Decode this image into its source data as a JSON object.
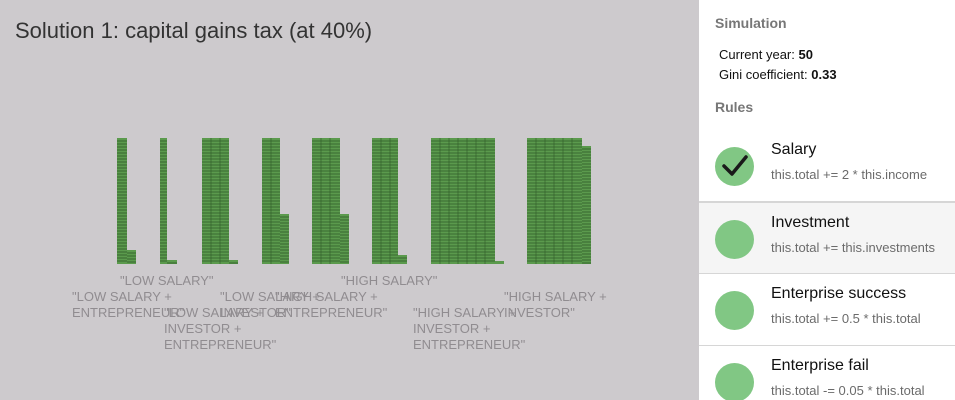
{
  "title": "Solution 1: capital gains tax (at 40%)",
  "colors": {
    "bar": "#5b9a4d",
    "brick_line": "#2f5a28",
    "panel_bg": "#cdcacd",
    "rule_circle": "#81c784"
  },
  "chart_data": {
    "type": "bar",
    "title": "Solution 1: capital gains tax (at 40%)",
    "bars": [
      {
        "group": 0,
        "value": 11
      },
      {
        "group": 0,
        "value": 1
      },
      {
        "group": 1,
        "value": 10
      },
      {
        "group": 1,
        "value": 1
      },
      {
        "group": 2,
        "value": 10
      },
      {
        "group": 2,
        "value": 4
      },
      {
        "group": 3,
        "value": 10
      },
      {
        "group": 3,
        "value": 4
      },
      {
        "group": 4,
        "value": 10
      },
      {
        "group": 4,
        "value": 6
      },
      {
        "group": 5,
        "value": 31
      },
      {
        "group": 6,
        "value": 40
      }
    ],
    "groups": [
      "\"LOW SALARY\"",
      "\"LOW SALARY +\nENTREPRENEUR\"",
      "\"LOW SALARY +\nINVESTOR +\nENTREPRENEUR\"",
      "\"LOW SALARY +\nINVESTOR\"",
      "\"HIGH SALARY +\nENTREPRENEUR\"",
      "\"HIGH SALARY\"",
      "\"HIGH SALARY +\nINVESTOR +\nENTREPRENEUR\"",
      "\"HIGH SALARY +\nINVESTOR\""
    ]
  },
  "sidebar": {
    "simulation_title": "Simulation",
    "current_year_label": "Current year: ",
    "current_year_value": "50",
    "gini_label": "Gini coefficient: ",
    "gini_value": "0.33",
    "rules_title": "Rules",
    "rules": [
      {
        "name": "Salary",
        "code": "this.total += 2 * this.income",
        "checked": true,
        "highlighted": false
      },
      {
        "name": "Investment",
        "code": "this.total += this.investments",
        "checked": false,
        "highlighted": true
      },
      {
        "name": "Enterprise success",
        "code": "this.total += 0.5 * this.total",
        "checked": false,
        "highlighted": false
      },
      {
        "name": "Enterprise fail",
        "code": "this.total -= 0.05 * this.total",
        "checked": false,
        "highlighted": false
      }
    ]
  }
}
